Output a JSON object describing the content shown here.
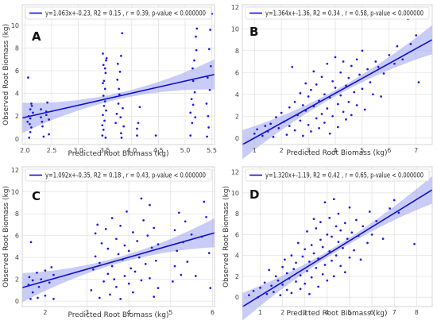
{
  "chart_data": [
    {
      "type": "scatter",
      "panel": "A",
      "legend": "y=1.063x+-0.23, R2 = 0.15 , r = 0.39, p-value < 0.000000",
      "xlabel": "Predicted Root Biomass (kg)",
      "ylabel": "Observed Root Biomass (kg)",
      "xticks": [
        "2.0",
        "2.5",
        "3.0",
        "3.5",
        "4.0",
        "4.5",
        "5.0",
        "5.5"
      ],
      "yticks": [
        "0",
        "2",
        "4",
        "6",
        "8",
        "10"
      ],
      "xlim": [
        1.95,
        5.55
      ],
      "ylim": [
        -0.5,
        11.8
      ],
      "regression": {
        "slope": 1.063,
        "intercept": -0.23
      },
      "grid": true,
      "legend_position": "top-left",
      "colors": {
        "points": "#1a1ae6",
        "line": "#1010c8",
        "band": "#9ba3ee"
      },
      "points": [
        [
          2.05,
          1.5
        ],
        [
          2.07,
          2.0
        ],
        [
          2.1,
          1.8
        ],
        [
          2.1,
          2.6
        ],
        [
          2.12,
          3.1
        ],
        [
          2.08,
          0.1
        ],
        [
          2.1,
          0.6
        ],
        [
          2.15,
          2.3
        ],
        [
          2.06,
          5.4
        ],
        [
          2.12,
          1.0
        ],
        [
          2.13,
          2.9
        ],
        [
          2.09,
          1.3
        ],
        [
          2.3,
          1.9
        ],
        [
          2.32,
          1.5
        ],
        [
          2.3,
          2.6
        ],
        [
          2.35,
          0.2
        ],
        [
          2.33,
          1.1
        ],
        [
          2.4,
          2.4
        ],
        [
          2.42,
          3.2
        ],
        [
          2.45,
          1.7
        ],
        [
          2.45,
          0.4
        ],
        [
          2.4,
          2.1
        ],
        [
          3.45,
          1.2
        ],
        [
          3.46,
          2.1
        ],
        [
          3.47,
          3.8
        ],
        [
          3.48,
          5.1
        ],
        [
          3.5,
          6.2
        ],
        [
          3.46,
          7.5
        ],
        [
          3.52,
          6.9
        ],
        [
          3.45,
          0.3
        ],
        [
          3.47,
          0.8
        ],
        [
          3.5,
          4.4
        ],
        [
          3.48,
          2.9
        ],
        [
          3.51,
          5.8
        ],
        [
          3.53,
          7.1
        ],
        [
          3.49,
          1.6
        ],
        [
          3.47,
          6.5
        ],
        [
          3.5,
          3.3
        ],
        [
          3.52,
          2.5
        ],
        [
          3.46,
          4.9
        ],
        [
          3.51,
          0.1
        ],
        [
          3.7,
          1.4
        ],
        [
          3.72,
          2.2
        ],
        [
          3.75,
          3.1
        ],
        [
          3.78,
          5.9
        ],
        [
          3.8,
          7.3
        ],
        [
          3.82,
          9.3
        ],
        [
          3.76,
          4.4
        ],
        [
          3.8,
          0.5
        ],
        [
          3.74,
          6.6
        ],
        [
          3.79,
          1.9
        ],
        [
          3.83,
          2.7
        ],
        [
          3.77,
          3.9
        ],
        [
          3.85,
          1.1
        ],
        [
          3.81,
          0.1
        ],
        [
          3.73,
          5.2
        ],
        [
          4.1,
          0.9
        ],
        [
          4.12,
          1.4
        ],
        [
          4.15,
          2.8
        ],
        [
          4.1,
          0.3
        ],
        [
          4.45,
          0.3
        ],
        [
          5.1,
          2.3
        ],
        [
          5.12,
          3.5
        ],
        [
          5.15,
          5.1
        ],
        [
          5.17,
          6.9
        ],
        [
          5.2,
          9.0
        ],
        [
          5.22,
          9.7
        ],
        [
          5.1,
          0.3
        ],
        [
          5.13,
          1.4
        ],
        [
          5.18,
          4.1
        ],
        [
          5.21,
          7.8
        ],
        [
          5.15,
          3.0
        ],
        [
          5.19,
          1.9
        ],
        [
          5.14,
          6.2
        ],
        [
          5.4,
          3.1
        ],
        [
          5.42,
          5.4
        ],
        [
          5.45,
          7.9
        ],
        [
          5.47,
          9.6
        ],
        [
          5.5,
          11.0
        ],
        [
          5.43,
          2.0
        ],
        [
          5.48,
          6.4
        ],
        [
          5.41,
          0.2
        ],
        [
          5.46,
          4.3
        ],
        [
          5.44,
          1.0
        ]
      ]
    },
    {
      "type": "scatter",
      "panel": "B",
      "legend": "y=1.364x+-1.36, R2 = 0.34 , r = 0.58, p-value < 0.000000",
      "xlabel": "Predicted Root Biomass (kg)",
      "ylabel": "",
      "xticks": [
        "1",
        "2",
        "3",
        "4",
        "5",
        "6",
        "7"
      ],
      "yticks": [
        "0",
        "2",
        "4",
        "6",
        "8",
        "10",
        "12"
      ],
      "xlim": [
        0.55,
        7.6
      ],
      "ylim": [
        -0.6,
        12.2
      ],
      "regression": {
        "slope": 1.364,
        "intercept": -1.36
      },
      "grid": true,
      "legend_position": "top-left",
      "colors": {
        "points": "#1a1ae6",
        "line": "#1010c8",
        "band": "#9ba3ee"
      },
      "points": [
        [
          1.0,
          0.4
        ],
        [
          1.1,
          0.8
        ],
        [
          1.3,
          0.2
        ],
        [
          1.4,
          1.1
        ],
        [
          1.5,
          0.6
        ],
        [
          1.6,
          1.3
        ],
        [
          1.7,
          0.1
        ],
        [
          1.8,
          1.9
        ],
        [
          1.9,
          0.9
        ],
        [
          2.0,
          2.3
        ],
        [
          2.1,
          1.5
        ],
        [
          2.2,
          0.3
        ],
        [
          2.3,
          2.8
        ],
        [
          2.3,
          1.1
        ],
        [
          2.4,
          6.5
        ],
        [
          2.5,
          3.3
        ],
        [
          2.5,
          0.7
        ],
        [
          2.6,
          2.1
        ],
        [
          2.7,
          4.1
        ],
        [
          2.7,
          1.6
        ],
        [
          2.8,
          0.2
        ],
        [
          2.8,
          3.0
        ],
        [
          2.9,
          2.5
        ],
        [
          2.9,
          5.0
        ],
        [
          3.0,
          1.2
        ],
        [
          3.0,
          3.8
        ],
        [
          3.1,
          4.4
        ],
        [
          3.1,
          0.6
        ],
        [
          3.2,
          2.9
        ],
        [
          3.2,
          6.1
        ],
        [
          3.3,
          1.8
        ],
        [
          3.3,
          4.9
        ],
        [
          3.4,
          3.4
        ],
        [
          3.4,
          0.9
        ],
        [
          3.5,
          2.2
        ],
        [
          3.5,
          5.6
        ],
        [
          3.6,
          4.0
        ],
        [
          3.6,
          1.4
        ],
        [
          3.7,
          6.8
        ],
        [
          3.7,
          2.7
        ],
        [
          3.8,
          3.7
        ],
        [
          3.8,
          0.4
        ],
        [
          3.9,
          5.2
        ],
        [
          3.9,
          2.0
        ],
        [
          4.0,
          4.6
        ],
        [
          4.0,
          7.4
        ],
        [
          4.1,
          3.1
        ],
        [
          4.1,
          1.0
        ],
        [
          4.2,
          6.0
        ],
        [
          4.2,
          3.9
        ],
        [
          4.3,
          2.4
        ],
        [
          4.3,
          7.0
        ],
        [
          4.4,
          4.8
        ],
        [
          4.4,
          1.7
        ],
        [
          4.5,
          5.5
        ],
        [
          4.5,
          3.3
        ],
        [
          4.6,
          6.6
        ],
        [
          4.6,
          2.1
        ],
        [
          4.7,
          4.2
        ],
        [
          4.8,
          7.2
        ],
        [
          4.8,
          3.0
        ],
        [
          4.9,
          5.8
        ],
        [
          5.0,
          4.5
        ],
        [
          5.0,
          8.0
        ],
        [
          5.1,
          2.6
        ],
        [
          5.2,
          6.3
        ],
        [
          5.3,
          5.1
        ],
        [
          5.4,
          4.0
        ],
        [
          5.5,
          7.0
        ],
        [
          5.6,
          6.5
        ],
        [
          5.7,
          3.8
        ],
        [
          5.8,
          5.9
        ],
        [
          6.0,
          7.6
        ],
        [
          6.2,
          6.8
        ],
        [
          6.3,
          8.4
        ],
        [
          6.5,
          7.2
        ],
        [
          6.7,
          10.9
        ],
        [
          6.8,
          8.6
        ],
        [
          7.0,
          9.4
        ],
        [
          7.1,
          5.1
        ]
      ]
    },
    {
      "type": "scatter",
      "panel": "C",
      "legend": "y=1.092x+-0.35, R2 = 0.18 , r = 0.43, p-value < 0.000000",
      "xlabel": "Predicted Root Biomass (kg)",
      "ylabel": "Observed Root Biomass (kg)",
      "xticks": [
        "2",
        "3",
        "4",
        "5",
        "6"
      ],
      "yticks": [
        "0",
        "2",
        "4",
        "6",
        "8",
        "10",
        "12"
      ],
      "xlim": [
        1.45,
        6.05
      ],
      "ylim": [
        -0.5,
        12.3
      ],
      "regression": {
        "slope": 1.092,
        "intercept": -0.35
      },
      "grid": true,
      "legend_position": "top-left",
      "colors": {
        "points": "#1a1ae6",
        "line": "#1010c8",
        "band": "#9ba3ee"
      },
      "points": [
        [
          1.6,
          1.5
        ],
        [
          1.62,
          2.2
        ],
        [
          1.65,
          0.2
        ],
        [
          1.66,
          5.4
        ],
        [
          1.7,
          1.9
        ],
        [
          1.7,
          0.8
        ],
        [
          1.8,
          2.6
        ],
        [
          1.82,
          0.3
        ],
        [
          1.85,
          1.3
        ],
        [
          1.9,
          2.0
        ],
        [
          2.0,
          2.8
        ],
        [
          2.0,
          0.5
        ],
        [
          2.1,
          1.7
        ],
        [
          2.15,
          3.1
        ],
        [
          2.2,
          0.2
        ],
        [
          2.2,
          2.4
        ],
        [
          3.1,
          1.0
        ],
        [
          3.15,
          2.9
        ],
        [
          3.2,
          4.1
        ],
        [
          3.2,
          6.2
        ],
        [
          3.25,
          7.0
        ],
        [
          3.3,
          0.3
        ],
        [
          3.3,
          3.5
        ],
        [
          3.35,
          5.3
        ],
        [
          3.4,
          1.8
        ],
        [
          3.45,
          6.6
        ],
        [
          3.5,
          2.5
        ],
        [
          3.5,
          4.8
        ],
        [
          3.55,
          0.6
        ],
        [
          3.6,
          3.2
        ],
        [
          3.6,
          7.6
        ],
        [
          3.65,
          2.0
        ],
        [
          3.7,
          5.7
        ],
        [
          3.7,
          1.3
        ],
        [
          3.75,
          4.3
        ],
        [
          3.8,
          0.2
        ],
        [
          3.8,
          6.9
        ],
        [
          3.85,
          3.8
        ],
        [
          3.9,
          2.3
        ],
        [
          3.9,
          5.1
        ],
        [
          3.95,
          8.2
        ],
        [
          4.0,
          1.6
        ],
        [
          4.0,
          4.6
        ],
        [
          4.05,
          3.0
        ],
        [
          4.1,
          6.3
        ],
        [
          4.1,
          0.8
        ],
        [
          4.15,
          2.7
        ],
        [
          4.2,
          5.5
        ],
        [
          4.25,
          4.0
        ],
        [
          4.3,
          9.4
        ],
        [
          4.3,
          1.9
        ],
        [
          4.35,
          7.4
        ],
        [
          4.4,
          3.4
        ],
        [
          4.45,
          6.0
        ],
        [
          4.5,
          2.1
        ],
        [
          4.5,
          8.8
        ],
        [
          4.55,
          4.9
        ],
        [
          4.6,
          0.4
        ],
        [
          4.6,
          6.7
        ],
        [
          4.65,
          3.7
        ],
        [
          4.7,
          5.2
        ],
        [
          4.7,
          1.2
        ],
        [
          5.05,
          1.8
        ],
        [
          5.1,
          3.2
        ],
        [
          5.1,
          6.5
        ],
        [
          5.15,
          4.6
        ],
        [
          5.2,
          8.1
        ],
        [
          5.25,
          2.4
        ],
        [
          5.3,
          5.4
        ],
        [
          5.35,
          7.3
        ],
        [
          5.4,
          3.6
        ],
        [
          5.5,
          6.1
        ],
        [
          5.6,
          2.3
        ],
        [
          5.75,
          5.9
        ],
        [
          5.8,
          9.1
        ],
        [
          5.85,
          7.7
        ],
        [
          5.9,
          11.2
        ],
        [
          5.92,
          4.4
        ],
        [
          5.95,
          1.2
        ]
      ]
    },
    {
      "type": "scatter",
      "panel": "D",
      "legend": "y=1.320x+-1.19, R2 = 0.42 , r = 0.65, p-value < 0.000000",
      "xlabel": "Predicted Root Biomass (kg)",
      "ylabel": "Observed Root Biomass (kg)",
      "xticks": [
        "1",
        "2",
        "3",
        "4",
        "5",
        "6",
        "7",
        "8"
      ],
      "yticks": [
        "0",
        "2",
        "4",
        "6",
        "8",
        "10",
        "12"
      ],
      "xlim": [
        0.2,
        8.7
      ],
      "ylim": [
        -0.9,
        12.5
      ],
      "regression": {
        "slope": 1.32,
        "intercept": -1.19
      },
      "grid": true,
      "legend_position": "top-left",
      "colors": {
        "points": "#1a1ae6",
        "line": "#1010c8",
        "band": "#9ba3ee"
      },
      "points": [
        [
          0.5,
          0.2
        ],
        [
          0.7,
          0.6
        ],
        [
          0.9,
          0.0
        ],
        [
          1.0,
          0.9
        ],
        [
          1.2,
          1.4
        ],
        [
          1.3,
          0.3
        ],
        [
          1.4,
          2.6
        ],
        [
          1.5,
          1.1
        ],
        [
          1.6,
          0.5
        ],
        [
          1.7,
          2.0
        ],
        [
          1.8,
          1.6
        ],
        [
          1.9,
          0.2
        ],
        [
          2.0,
          2.9
        ],
        [
          2.0,
          1.2
        ],
        [
          2.1,
          3.6
        ],
        [
          2.2,
          0.7
        ],
        [
          2.2,
          2.3
        ],
        [
          2.3,
          1.8
        ],
        [
          2.4,
          4.0
        ],
        [
          2.4,
          0.4
        ],
        [
          2.5,
          2.7
        ],
        [
          2.6,
          1.5
        ],
        [
          2.6,
          3.3
        ],
        [
          2.7,
          5.2
        ],
        [
          2.8,
          2.1
        ],
        [
          2.8,
          0.8
        ],
        [
          2.9,
          3.9
        ],
        [
          3.0,
          1.3
        ],
        [
          3.0,
          4.6
        ],
        [
          3.1,
          2.5
        ],
        [
          3.1,
          6.3
        ],
        [
          3.2,
          0.3
        ],
        [
          3.2,
          3.4
        ],
        [
          3.3,
          5.0
        ],
        [
          3.3,
          1.9
        ],
        [
          3.4,
          4.2
        ],
        [
          3.4,
          7.5
        ],
        [
          3.5,
          2.8
        ],
        [
          3.5,
          6.6
        ],
        [
          3.6,
          1.0
        ],
        [
          3.6,
          3.7
        ],
        [
          3.7,
          5.5
        ],
        [
          3.7,
          7.2
        ],
        [
          3.8,
          2.2
        ],
        [
          3.8,
          4.8
        ],
        [
          3.9,
          3.1
        ],
        [
          3.9,
          9.1
        ],
        [
          4.0,
          6.0
        ],
        [
          4.0,
          1.6
        ],
        [
          4.1,
          4.4
        ],
        [
          4.1,
          7.6
        ],
        [
          4.2,
          3.5
        ],
        [
          4.2,
          5.8
        ],
        [
          4.3,
          2.0
        ],
        [
          4.3,
          9.4
        ],
        [
          4.4,
          6.8
        ],
        [
          4.4,
          4.0
        ],
        [
          4.5,
          5.3
        ],
        [
          4.5,
          8.0
        ],
        [
          4.6,
          3.0
        ],
        [
          4.6,
          6.4
        ],
        [
          4.7,
          4.7
        ],
        [
          4.8,
          7.1
        ],
        [
          4.8,
          2.4
        ],
        [
          4.9,
          5.6
        ],
        [
          5.0,
          3.8
        ],
        [
          5.0,
          8.6
        ],
        [
          5.1,
          6.2
        ],
        [
          5.2,
          4.5
        ],
        [
          5.3,
          7.4
        ],
        [
          5.4,
          5.9
        ],
        [
          5.5,
          3.6
        ],
        [
          5.6,
          6.8
        ],
        [
          5.8,
          5.2
        ],
        [
          5.9,
          8.2
        ],
        [
          6.0,
          6.0
        ],
        [
          6.2,
          7.3
        ],
        [
          6.5,
          5.6
        ],
        [
          6.8,
          8.5
        ],
        [
          7.0,
          9.3
        ],
        [
          7.2,
          8.1
        ],
        [
          7.8,
          11.3
        ],
        [
          7.9,
          5.1
        ]
      ]
    }
  ]
}
